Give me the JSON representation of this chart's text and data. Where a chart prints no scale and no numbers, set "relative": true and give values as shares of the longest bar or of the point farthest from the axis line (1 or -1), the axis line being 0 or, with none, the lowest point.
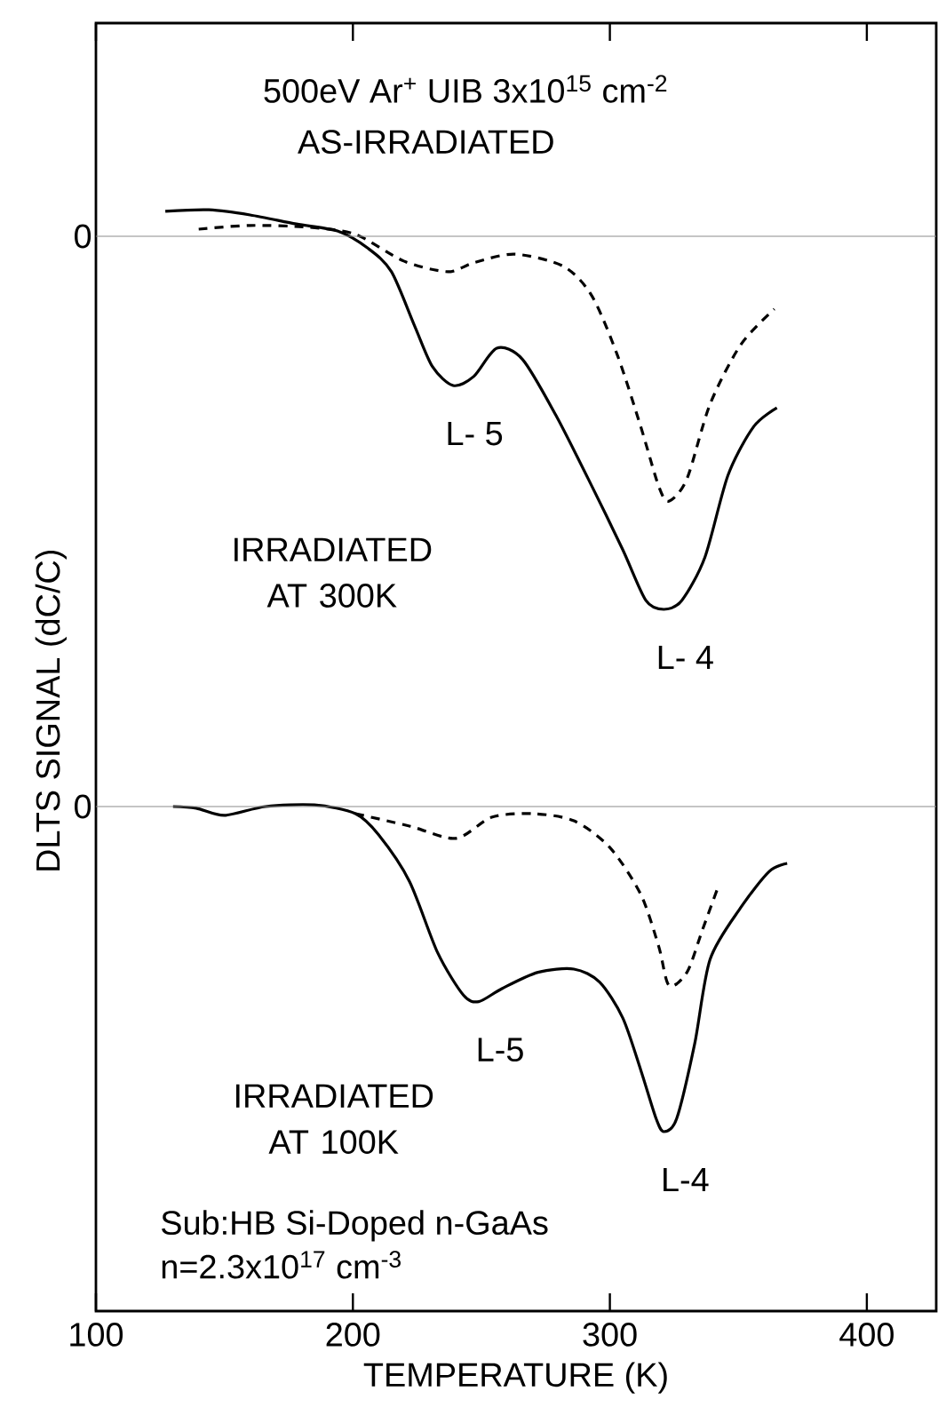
{
  "chart_data": [
    {
      "type": "line",
      "relative": true,
      "title": "500eV Ar$^{+}$ UIB 3x10$^{15}$ cm$^{-2}$",
      "subtitle": "AS-IRRADIATED",
      "xlim": [
        100,
        427
      ],
      "xticks": [
        100,
        200,
        300,
        400
      ],
      "tick_labels": false,
      "ref_lines": [
        {
          "axis": "y",
          "value": 0,
          "label": "0"
        }
      ],
      "annotations": [
        "IRRADIATED AT 300K",
        {
          "text": "L- 5",
          "x": 239,
          "y": -0.4
        },
        {
          "text": "L- 4",
          "x": 321,
          "y": -1.0
        }
      ],
      "series": [
        {
          "color": "#000000",
          "line_style": "solid",
          "x": [
            127,
            144,
            160,
            178,
            194,
            206,
            215,
            224,
            231,
            239,
            247,
            256,
            266,
            279,
            293,
            305,
            314,
            321,
            328,
            337,
            346,
            356,
            365
          ],
          "values": [
            0.067,
            0.071,
            0.057,
            0.033,
            0.014,
            -0.033,
            -0.095,
            -0.24,
            -0.35,
            -0.4,
            -0.376,
            -0.3,
            -0.33,
            -0.48,
            -0.67,
            -0.84,
            -0.976,
            -1.0,
            -0.976,
            -0.86,
            -0.64,
            -0.51,
            -0.46
          ]
        },
        {
          "color": "#000000",
          "line_style": "dashed",
          "x": [
            140,
            160,
            183,
            201,
            220,
            237,
            247,
            263,
            282,
            293,
            303,
            312,
            319,
            323,
            330,
            339,
            351,
            364
          ],
          "values": [
            0.019,
            0.029,
            0.024,
            0.005,
            -0.067,
            -0.095,
            -0.071,
            -0.048,
            -0.081,
            -0.16,
            -0.32,
            -0.51,
            -0.67,
            -0.71,
            -0.65,
            -0.45,
            -0.29,
            -0.195
          ]
        }
      ]
    },
    {
      "type": "line",
      "relative": true,
      "xlabel": "TEMPERATURE (K)",
      "ylabel": "DLTS SIGNAL (dC/C)",
      "xlim": [
        100,
        427
      ],
      "xticks": [
        100,
        200,
        300,
        400
      ],
      "ref_lines": [
        {
          "axis": "y",
          "value": 0,
          "label": "0"
        }
      ],
      "annotations": [
        "IRRADIATED AT 100K",
        "Sub:HB Si-Doped n-GaAs",
        "n=2.3x10$^{17}$ cm$^{-3}$",
        {
          "text": "L-5",
          "x": 249,
          "y": -0.6
        },
        {
          "text": "L-4",
          "x": 321,
          "y": -1.0
        }
      ],
      "series": [
        {
          "color": "#000000",
          "line_style": "solid",
          "x": [
            130,
            139,
            150,
            166,
            185,
            201,
            210,
            222,
            233,
            243,
            249,
            258,
            272,
            286,
            296,
            305,
            312,
            318,
            321,
            326,
            333,
            339,
            351,
            362,
            369
          ],
          "values": [
            0,
            -0.005,
            -0.027,
            0,
            0.005,
            -0.022,
            -0.087,
            -0.23,
            -0.45,
            -0.58,
            -0.6,
            -0.56,
            -0.51,
            -0.5,
            -0.54,
            -0.65,
            -0.81,
            -0.96,
            -1.0,
            -0.96,
            -0.73,
            -0.47,
            -0.31,
            -0.2,
            -0.175
          ]
        },
        {
          "color": "#000000",
          "line_style": "dashed",
          "x": [
            201,
            222,
            240,
            254,
            270,
            286,
            300,
            312,
            319,
            323,
            330,
            336,
            342
          ],
          "values": [
            -0.022,
            -0.06,
            -0.098,
            -0.033,
            -0.022,
            -0.044,
            -0.126,
            -0.27,
            -0.43,
            -0.55,
            -0.51,
            -0.38,
            -0.25
          ]
        }
      ]
    }
  ]
}
